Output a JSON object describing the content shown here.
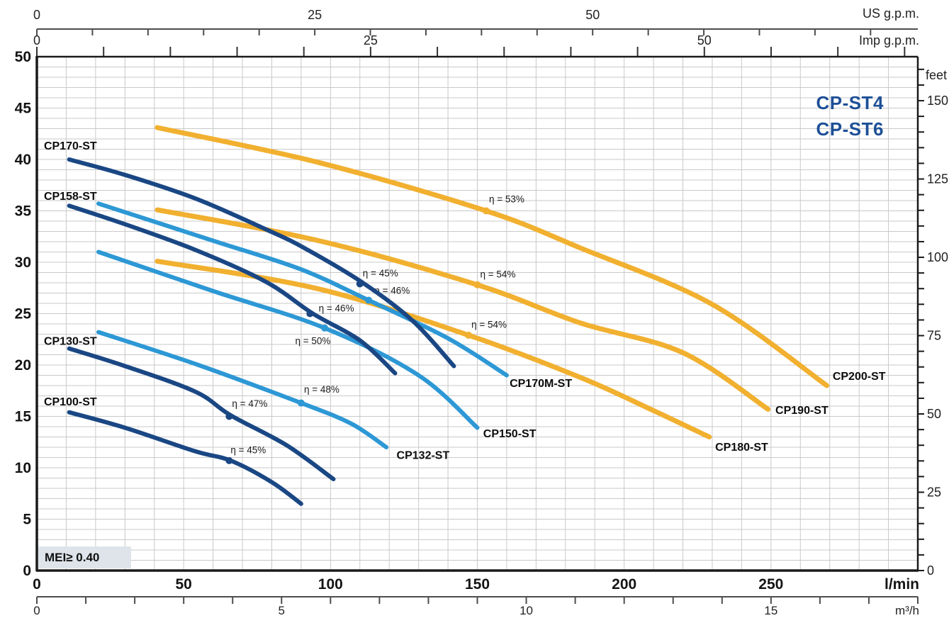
{
  "title": {
    "lines": [
      "CP-ST4",
      "CP-ST6"
    ],
    "color": "#1d4f96"
  },
  "badges": {
    "mei": "MEI≥ 0.40"
  },
  "colors": {
    "navy": "#1a4784",
    "light_blue": "#2d98d5",
    "yellow": "#f1b02f",
    "grid": "#c9c9c9",
    "axis": "#1a1a1a",
    "sub_axis": "#4d4d4d"
  },
  "chart_data": {
    "type": "line",
    "x_unit": "l/min",
    "y_unit": "m",
    "x_range": [
      0,
      300
    ],
    "y_range": [
      0,
      50
    ],
    "grid": {
      "x_step_lmin": 10,
      "y_step_m": 1
    },
    "axes": {
      "bottom_lmin": {
        "label": "l/min",
        "labeled_ticks": [
          0,
          50,
          100,
          150,
          200,
          250
        ]
      },
      "bottom_m3h": {
        "label": "m³/h",
        "labeled_ticks": [
          0,
          5,
          10,
          15
        ],
        "tick_step": 1,
        "lmin_per_unit": 16.6667
      },
      "top_usgpm": {
        "label": "US g.p.m.",
        "labeled_ticks": [
          0,
          25,
          50
        ],
        "tick_step": 5,
        "lmin_per_unit": 3.78541
      },
      "top_impgpm": {
        "label": "Imp g.p.m.",
        "labeled_ticks": [
          0,
          25,
          50
        ],
        "tick_step": 5,
        "lmin_per_unit": 4.54609
      },
      "left_m": {
        "labeled_ticks": [
          0,
          5,
          10,
          15,
          20,
          25,
          30,
          35,
          40,
          45,
          50
        ]
      },
      "right_feet": {
        "label": "feet",
        "labeled_ticks": [
          0,
          25,
          50,
          75,
          100,
          125,
          150
        ],
        "tick_step": 5,
        "m_per_unit": 0.3048
      }
    },
    "series": [
      {
        "name": "CP200-ST",
        "color_key": "yellow",
        "width": 7,
        "points": [
          [
            41,
            43.1
          ],
          [
            96,
            39.7
          ],
          [
            153,
            35.0
          ],
          [
            185,
            31.4
          ],
          [
            230,
            25.9
          ],
          [
            269,
            18.0
          ]
        ],
        "label": {
          "text": "CP200-ST",
          "at": [
            271,
            18.9
          ]
        },
        "eta": [
          {
            "text": "η = 53%",
            "at": [
              153,
              35.0
            ],
            "label_at": [
              160,
              36.1
            ]
          }
        ]
      },
      {
        "name": "CP190-ST",
        "color_key": "yellow",
        "width": 7,
        "points": [
          [
            41,
            35.1
          ],
          [
            96,
            32.1
          ],
          [
            150,
            27.8
          ],
          [
            185,
            24.1
          ],
          [
            220,
            21.2
          ],
          [
            249,
            15.7
          ]
        ],
        "label": {
          "text": "CP190-ST",
          "at": [
            251.5,
            15.6
          ]
        },
        "eta": [
          {
            "text": "η = 54%",
            "at": [
              150,
              27.8
            ],
            "label_at": [
              157,
              28.8
            ]
          }
        ]
      },
      {
        "name": "CP180-ST",
        "color_key": "yellow",
        "width": 7,
        "points": [
          [
            41,
            30.1
          ],
          [
            96,
            27.4
          ],
          [
            147,
            22.9
          ],
          [
            185,
            18.8
          ],
          [
            209,
            15.7
          ],
          [
            229,
            13.0
          ]
        ],
        "label": {
          "text": "CP180-ST",
          "at": [
            231,
            12.0
          ]
        },
        "eta": [
          {
            "text": "η = 54%",
            "at": [
              147,
              22.9
            ],
            "label_at": [
              154,
              23.9
            ]
          }
        ]
      },
      {
        "name": "CP170M-ST",
        "color_key": "light_blue",
        "width": 6,
        "points": [
          [
            21,
            35.7
          ],
          [
            60,
            32.1
          ],
          [
            90,
            29.3
          ],
          [
            113,
            26.3
          ],
          [
            140,
            22.6
          ],
          [
            160,
            19.0
          ]
        ],
        "label": {
          "text": "CP170M-ST",
          "at": [
            161,
            18.2
          ]
        },
        "eta": [
          {
            "text": "η = 46%",
            "at": [
              113,
              26.3
            ],
            "label_at": [
              121,
              27.2
            ]
          }
        ]
      },
      {
        "name": "CP150-ST",
        "color_key": "light_blue",
        "width": 6,
        "points": [
          [
            21,
            31.0
          ],
          [
            60,
            27.2
          ],
          [
            98,
            23.6
          ],
          [
            130,
            19.0
          ],
          [
            150,
            13.9
          ]
        ],
        "label": {
          "text": "CP150-ST",
          "at": [
            152,
            13.3
          ]
        },
        "eta": [
          {
            "text": "η = 50%",
            "at": [
              98,
              23.6
            ],
            "label_at": [
              94,
              22.3
            ]
          }
        ]
      },
      {
        "name": "CP132-ST",
        "color_key": "light_blue",
        "width": 6,
        "points": [
          [
            21,
            23.2
          ],
          [
            55,
            20.0
          ],
          [
            90,
            16.3
          ],
          [
            107,
            14.3
          ],
          [
            119,
            12.0
          ]
        ],
        "label": {
          "text": "CP132-ST",
          "at": [
            122.5,
            11.2
          ]
        },
        "eta": [
          {
            "text": "η = 48%",
            "at": [
              90,
              16.3
            ],
            "label_at": [
              97,
              17.6
            ]
          }
        ]
      },
      {
        "name": "CP170-ST",
        "color_key": "navy",
        "width": 6,
        "points": [
          [
            11,
            40.0
          ],
          [
            30,
            38.5
          ],
          [
            54,
            36.2
          ],
          [
            78,
            33.2
          ],
          [
            91,
            31.4
          ],
          [
            111,
            28.0
          ],
          [
            128,
            24.3
          ],
          [
            142,
            19.9
          ]
        ],
        "label": {
          "text": "CP170-ST",
          "at": [
            2.4,
            41.3
          ]
        },
        "eta": [
          {
            "text": "η = 45%",
            "at": [
              110,
              27.9
            ],
            "label_at": [
              117,
              28.9
            ]
          }
        ]
      },
      {
        "name": "CP158-ST",
        "color_key": "navy",
        "width": 6,
        "points": [
          [
            11,
            35.5
          ],
          [
            30,
            33.7
          ],
          [
            54,
            31.2
          ],
          [
            78,
            28.1
          ],
          [
            94,
            25.0
          ],
          [
            110,
            22.4
          ],
          [
            122,
            19.2
          ]
        ],
        "label": {
          "text": "CP158-ST",
          "at": [
            2.4,
            36.4
          ]
        },
        "eta": [
          {
            "text": "η = 46%",
            "at": [
              93,
              25.0
            ],
            "label_at": [
              102,
              25.5
            ]
          }
        ]
      },
      {
        "name": "CP130-ST",
        "color_key": "navy",
        "width": 6,
        "points": [
          [
            11,
            21.6
          ],
          [
            30,
            19.9
          ],
          [
            54,
            17.4
          ],
          [
            66,
            15.1
          ],
          [
            85,
            12.2
          ],
          [
            101,
            8.9
          ]
        ],
        "label": {
          "text": "CP130-ST",
          "at": [
            2.4,
            22.3
          ]
        },
        "eta": [
          {
            "text": "η = 47%",
            "at": [
              65.5,
              15.0
            ],
            "label_at": [
              72.5,
              16.2
            ]
          }
        ]
      },
      {
        "name": "CP100-ST",
        "color_key": "navy",
        "width": 6,
        "points": [
          [
            11,
            15.4
          ],
          [
            30,
            13.9
          ],
          [
            54,
            11.6
          ],
          [
            66,
            10.7
          ],
          [
            80,
            8.6
          ],
          [
            90,
            6.5
          ]
        ],
        "label": {
          "text": "CP100-ST",
          "at": [
            2.4,
            16.4
          ]
        },
        "eta": [
          {
            "text": "η = 45%",
            "at": [
              65.5,
              10.7
            ],
            "label_at": [
              72,
              11.7
            ]
          }
        ]
      }
    ]
  }
}
